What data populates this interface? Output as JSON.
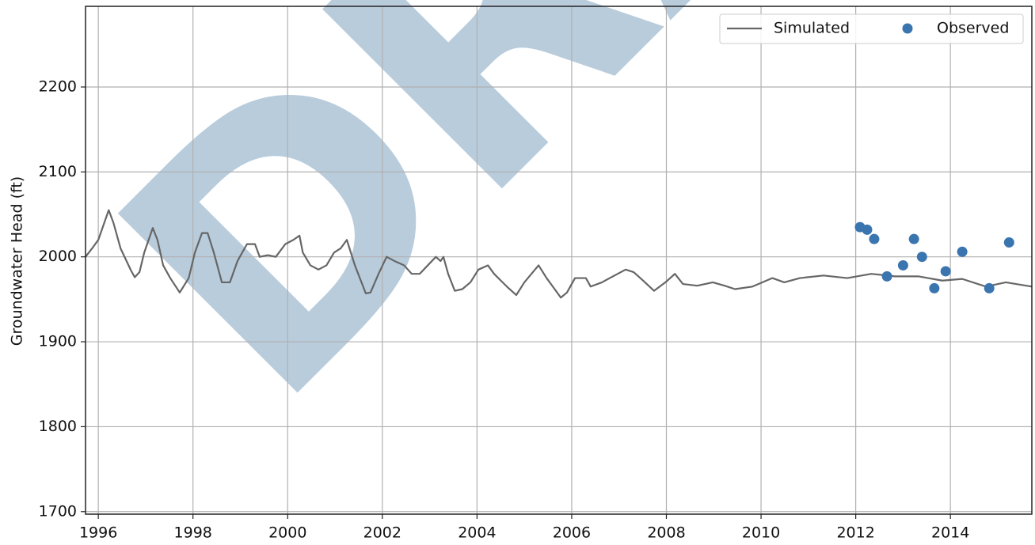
{
  "chart_data": {
    "type": "line",
    "watermark": "DRAFT",
    "y_label": "Groundwater Head (ft)",
    "xlim": [
      1995.73,
      2015.72
    ],
    "ylim": [
      1697,
      2295
    ],
    "xticks": [
      1996,
      1998,
      2000,
      2002,
      2004,
      2006,
      2008,
      2010,
      2012,
      2014
    ],
    "yticks": [
      1700,
      1800,
      1900,
      2000,
      2100,
      2200
    ],
    "grid": true,
    "legend": "upper right",
    "series": [
      {
        "name": "Simulated",
        "type": "line",
        "color": "#666666",
        "x": [
          1995.73,
          1995.87,
          1996.0,
          1996.22,
          1996.32,
          1996.47,
          1996.69,
          1996.77,
          1996.87,
          1996.97,
          1997.15,
          1997.25,
          1997.37,
          1997.52,
          1997.72,
          1997.91,
          1998.04,
          1998.19,
          1998.31,
          1998.44,
          1998.61,
          1998.78,
          1998.94,
          1999.14,
          1999.31,
          1999.41,
          1999.58,
          1999.75,
          1999.95,
          2000.12,
          2000.25,
          2000.32,
          2000.48,
          2000.65,
          2000.82,
          2000.98,
          2001.12,
          2001.25,
          2001.42,
          2001.65,
          2001.75,
          2001.92,
          2002.09,
          2002.26,
          2002.46,
          2002.62,
          2002.79,
          2002.96,
          2003.13,
          2003.23,
          2003.29,
          2003.39,
          2003.53,
          2003.69,
          2003.86,
          2004.03,
          2004.23,
          2004.36,
          2004.63,
          2004.83,
          2005.0,
          2005.3,
          2005.47,
          2005.64,
          2005.77,
          2005.9,
          2006.07,
          2006.3,
          2006.4,
          2006.64,
          2006.97,
          2007.14,
          2007.31,
          2007.51,
          2007.74,
          2007.98,
          2008.18,
          2008.35,
          2008.65,
          2008.98,
          2009.23,
          2009.45,
          2009.82,
          2010.24,
          2010.49,
          2010.82,
          2011.32,
          2011.82,
          2012.33,
          2012.83,
          2013.33,
          2013.83,
          2014.25,
          2014.75,
          2015.17,
          2015.72
        ],
        "values": [
          2000,
          2010,
          2020,
          2055,
          2040,
          2010,
          1984,
          1976,
          1982,
          2005,
          2034,
          2020,
          1990,
          1975,
          1958,
          1975,
          2005,
          2028,
          2028,
          2005,
          1970,
          1970,
          1995,
          2015,
          2015,
          2000,
          2002,
          2000,
          2015,
          2020,
          2025,
          2005,
          1990,
          1985,
          1990,
          2005,
          2010,
          2020,
          1990,
          1957,
          1958,
          1980,
          2000,
          1995,
          1990,
          1980,
          1980,
          1990,
          2000,
          1995,
          2000,
          1980,
          1960,
          1962,
          1970,
          1985,
          1990,
          1980,
          1965,
          1955,
          1970,
          1990,
          1975,
          1962,
          1952,
          1958,
          1975,
          1975,
          1965,
          1970,
          1980,
          1985,
          1982,
          1972,
          1960,
          1970,
          1980,
          1968,
          1966,
          1970,
          1966,
          1962,
          1965,
          1975,
          1970,
          1975,
          1978,
          1975,
          1980,
          1977,
          1977,
          1972,
          1974,
          1965,
          1970,
          1965
        ]
      },
      {
        "name": "Observed",
        "type": "scatter",
        "color": "#3b75af",
        "x": [
          2012.09,
          2012.24,
          2012.39,
          2012.66,
          2013.0,
          2013.23,
          2013.4,
          2013.66,
          2013.9,
          2014.25,
          2014.82,
          2015.24
        ],
        "values": [
          2035,
          2032,
          2021,
          1977,
          1990,
          2021,
          2000,
          1963,
          1983,
          2006,
          1963,
          2017
        ]
      }
    ]
  }
}
